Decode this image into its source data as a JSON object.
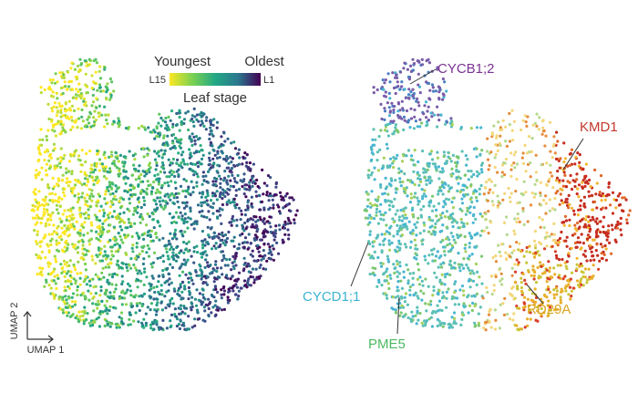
{
  "legend": {
    "low": "Youngest",
    "high": "Oldest",
    "low_stage": "L15",
    "high_stage": "L1",
    "title": "Leaf stage"
  },
  "axes": {
    "y": "UMAP 2",
    "x": "UMAP 1"
  },
  "genes": [
    "CYCB1;2",
    "KMD1",
    "CYCD1;1",
    "PME5",
    "RD29A"
  ]
}
